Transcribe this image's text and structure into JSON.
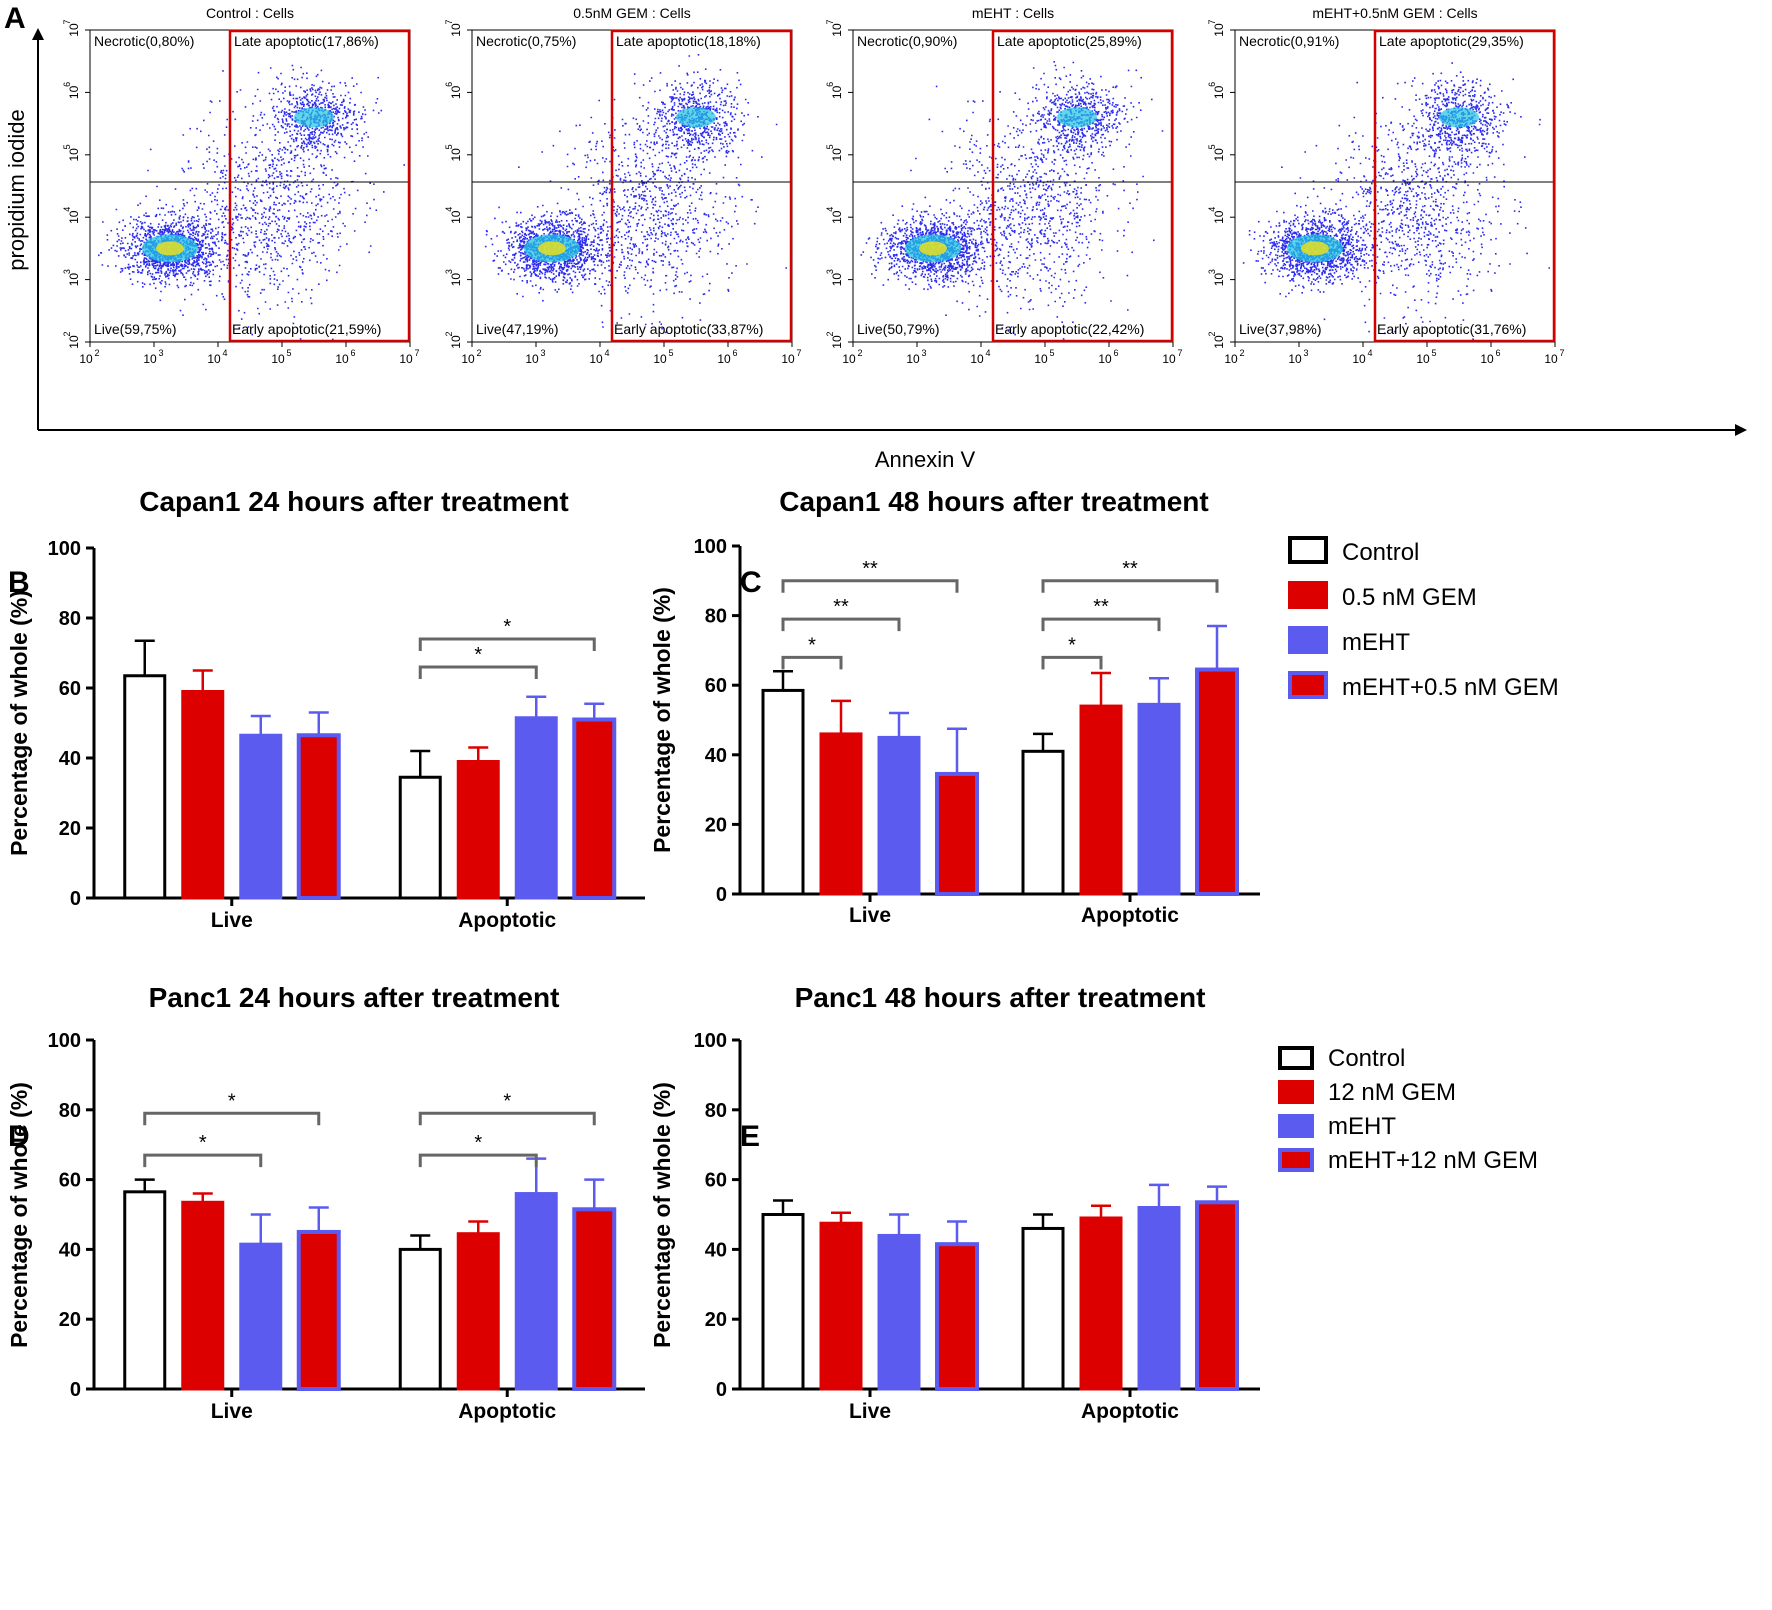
{
  "panel_letters": [
    "A",
    "B",
    "C",
    "D",
    "E"
  ],
  "flow": {
    "ylabel": "propidium iodide",
    "xlabel": "Annexin V",
    "ticks": [
      "10",
      "10",
      "10",
      "10",
      "10",
      "10"
    ],
    "tick_exponents": [
      "2",
      "3",
      "4",
      "5",
      "6",
      "7"
    ],
    "plots": [
      {
        "title": "Control : Cells",
        "necrotic": "Necrotic(0,80%)",
        "late": "Late apoptotic(17,86%)",
        "live": "Live(59,75%)",
        "early": "Early apoptotic(21,59%)"
      },
      {
        "title": "0.5nM GEM : Cells",
        "necrotic": "Necrotic(0,75%)",
        "late": "Late apoptotic(18,18%)",
        "live": "Live(47,19%)",
        "early": "Early apoptotic(33,87%)"
      },
      {
        "title": "mEHT : Cells",
        "necrotic": "Necrotic(0,90%)",
        "late": "Late apoptotic(25,89%)",
        "live": "Live(50,79%)",
        "early": "Early apoptotic(22,42%)"
      },
      {
        "title": "mEHT+0.5nM GEM : Cells",
        "necrotic": "Necrotic(0,91%)",
        "late": "Late apoptotic(29,35%)",
        "live": "Live(37,98%)",
        "early": "Early apoptotic(31,76%)"
      }
    ]
  },
  "legends": [
    {
      "entries": [
        "Control",
        "0.5 nM GEM",
        "mEHT",
        "mEHT+0.5 nM GEM"
      ]
    },
    {
      "entries": [
        "Control",
        "12 nM GEM",
        "mEHT",
        "mEHT+12 nM GEM"
      ]
    }
  ],
  "colors": {
    "control": "#ffffff",
    "gem": "#dd0000",
    "meht": "#5b5bf0",
    "combo": "#dd0000",
    "combo_border": "#5b5bf0",
    "bracket": "#666666"
  },
  "chart_data": [
    {
      "type": "bar",
      "panel": "B",
      "title": "Capan1 24 hours after treatment",
      "ylabel": "Percentage of whole (%)",
      "ylim": [
        0,
        100
      ],
      "yticks": [
        "0",
        "20",
        "40",
        "60",
        "80",
        "100"
      ],
      "categories": [
        "Live",
        "Apoptotic"
      ],
      "series": [
        {
          "name": "Control",
          "values": [
            63.5,
            34.5
          ],
          "errors": [
            10,
            7.5
          ]
        },
        {
          "name": "0.5 nM GEM",
          "values": [
            59,
            39
          ],
          "errors": [
            6,
            4
          ]
        },
        {
          "name": "mEHT",
          "values": [
            46.5,
            51.5
          ],
          "errors": [
            5.5,
            6
          ]
        },
        {
          "name": "mEHT+0.5 nM GEM",
          "values": [
            46.5,
            51
          ],
          "errors": [
            6.5,
            4.5
          ]
        }
      ],
      "brackets": [
        {
          "group": 1,
          "from": 0,
          "to": 2,
          "level": 66,
          "label": "*"
        },
        {
          "group": 1,
          "from": 0,
          "to": 3,
          "level": 74,
          "label": "*"
        }
      ]
    },
    {
      "type": "bar",
      "panel": "C",
      "title": "Capan1 48 hours after treatment",
      "ylabel": "Percentage of whole (%)",
      "ylim": [
        0,
        100
      ],
      "yticks": [
        "0",
        "20",
        "40",
        "60",
        "80",
        "100"
      ],
      "categories": [
        "Live",
        "Apoptotic"
      ],
      "series": [
        {
          "name": "Control",
          "values": [
            58.5,
            41
          ],
          "errors": [
            5.5,
            5
          ]
        },
        {
          "name": "0.5 nM GEM",
          "values": [
            46,
            54
          ],
          "errors": [
            9.5,
            9.5
          ]
        },
        {
          "name": "mEHT",
          "values": [
            45,
            54.5
          ],
          "errors": [
            7,
            7.5
          ]
        },
        {
          "name": "mEHT+0.5 nM GEM",
          "values": [
            34.5,
            64.5
          ],
          "errors": [
            13,
            12.5
          ]
        }
      ],
      "brackets": [
        {
          "group": 0,
          "from": 0,
          "to": 1,
          "level": 68,
          "label": "*"
        },
        {
          "group": 0,
          "from": 0,
          "to": 2,
          "level": 79,
          "label": "**"
        },
        {
          "group": 0,
          "from": 0,
          "to": 3,
          "level": 90,
          "label": "**"
        },
        {
          "group": 1,
          "from": 0,
          "to": 1,
          "level": 68,
          "label": "*"
        },
        {
          "group": 1,
          "from": 0,
          "to": 2,
          "level": 79,
          "label": "**"
        },
        {
          "group": 1,
          "from": 0,
          "to": 3,
          "level": 90,
          "label": "**"
        }
      ]
    },
    {
      "type": "bar",
      "panel": "D",
      "title": "Panc1 24 hours after treatment",
      "ylabel": "Percentage of whole (%)",
      "ylim": [
        0,
        100
      ],
      "yticks": [
        "0",
        "20",
        "40",
        "60",
        "80",
        "100"
      ],
      "categories": [
        "Live",
        "Apoptotic"
      ],
      "series": [
        {
          "name": "Control",
          "values": [
            56.5,
            40
          ],
          "errors": [
            3.5,
            4
          ]
        },
        {
          "name": "12 nM GEM",
          "values": [
            53.5,
            44.5
          ],
          "errors": [
            2.5,
            3.5
          ]
        },
        {
          "name": "mEHT",
          "values": [
            41.5,
            56
          ],
          "errors": [
            8.5,
            10
          ]
        },
        {
          "name": "mEHT+12 nM GEM",
          "values": [
            45,
            51.5
          ],
          "errors": [
            7,
            8.5
          ]
        }
      ],
      "brackets": [
        {
          "group": 0,
          "from": 0,
          "to": 2,
          "level": 67,
          "label": "*"
        },
        {
          "group": 0,
          "from": 0,
          "to": 3,
          "level": 79,
          "label": "*"
        },
        {
          "group": 1,
          "from": 0,
          "to": 2,
          "level": 67,
          "label": "*"
        },
        {
          "group": 1,
          "from": 0,
          "to": 3,
          "level": 79,
          "label": "*"
        }
      ]
    },
    {
      "type": "bar",
      "panel": "E",
      "title": "Panc1 48 hours after treatment",
      "ylabel": "Percentage of whole (%)",
      "ylim": [
        0,
        100
      ],
      "yticks": [
        "0",
        "20",
        "40",
        "60",
        "80",
        "100"
      ],
      "categories": [
        "Live",
        "Apoptotic"
      ],
      "series": [
        {
          "name": "Control",
          "values": [
            50,
            46
          ],
          "errors": [
            4,
            4
          ]
        },
        {
          "name": "12 nM GEM",
          "values": [
            47.5,
            49
          ],
          "errors": [
            3,
            3.5
          ]
        },
        {
          "name": "mEHT",
          "values": [
            44,
            52
          ],
          "errors": [
            6,
            6.5
          ]
        },
        {
          "name": "mEHT+12 nM GEM",
          "values": [
            41.5,
            53.5
          ],
          "errors": [
            6.5,
            4.5
          ]
        }
      ],
      "brackets": []
    }
  ]
}
